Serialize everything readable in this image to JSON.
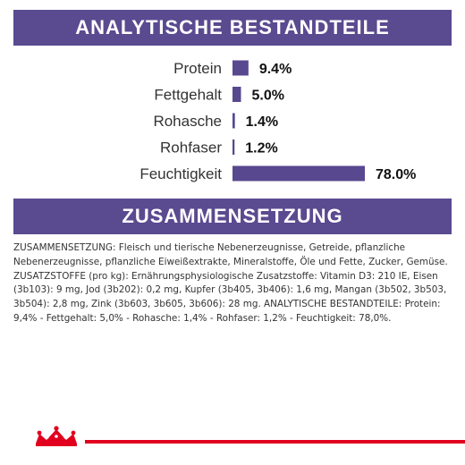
{
  "colors": {
    "brand_purple": "#58488f",
    "banner_fill": "#5a4a90",
    "brand_red": "#e1001e",
    "text": "#222222"
  },
  "header": {
    "analytic_title": "ANALYTISCHE BESTANDTEILE",
    "composition_title": "ZUSAMMENSETZUNG"
  },
  "composition": {
    "text": "ZUSAMMENSETZUNG: Fleisch und tierische Nebenerzeugnisse, Getreide, pflanzliche Nebenerzeugnisse, pflanzliche Eiweißextrakte, Mineralstoffe, Öle und Fette, Zucker, Gemüse. ZUSATZSTOFFE (pro kg): Ernährungsphysiologische Zusatzstoffe: Vitamin D3: 210 IE, Eisen (3b103): 9 mg, Jod (3b202): 0,2 mg, Kupfer (3b405, 3b406): 1,6 mg, Mangan (3b502, 3b503, 3b504): 2,8 mg, Zink (3b603, 3b605, 3b606): 28 mg. ANALYTISCHE BESTANDTEILE: Protein: 9,4% - Fettgehalt: 5,0% - Rohasche: 1,4% - Rohfaser: 1,2% - Feuchtigkeit: 78,0%."
  },
  "logo": {
    "icon": "crown-icon"
  },
  "chart_data": {
    "type": "bar",
    "orientation": "horizontal",
    "categories": [
      "Protein",
      "Fettgehalt",
      "Rohasche",
      "Rohfaser",
      "Feuchtigkeit"
    ],
    "values": [
      9.4,
      5.0,
      1.4,
      1.2,
      78.0
    ],
    "value_labels": [
      "9.4%",
      "5.0%",
      "1.4%",
      "1.2%",
      "78.0%"
    ],
    "title": "ANALYTISCHE BESTANDTEILE",
    "xlim": [
      0,
      78.0
    ],
    "grid": false,
    "bar_color": "#58488f"
  }
}
